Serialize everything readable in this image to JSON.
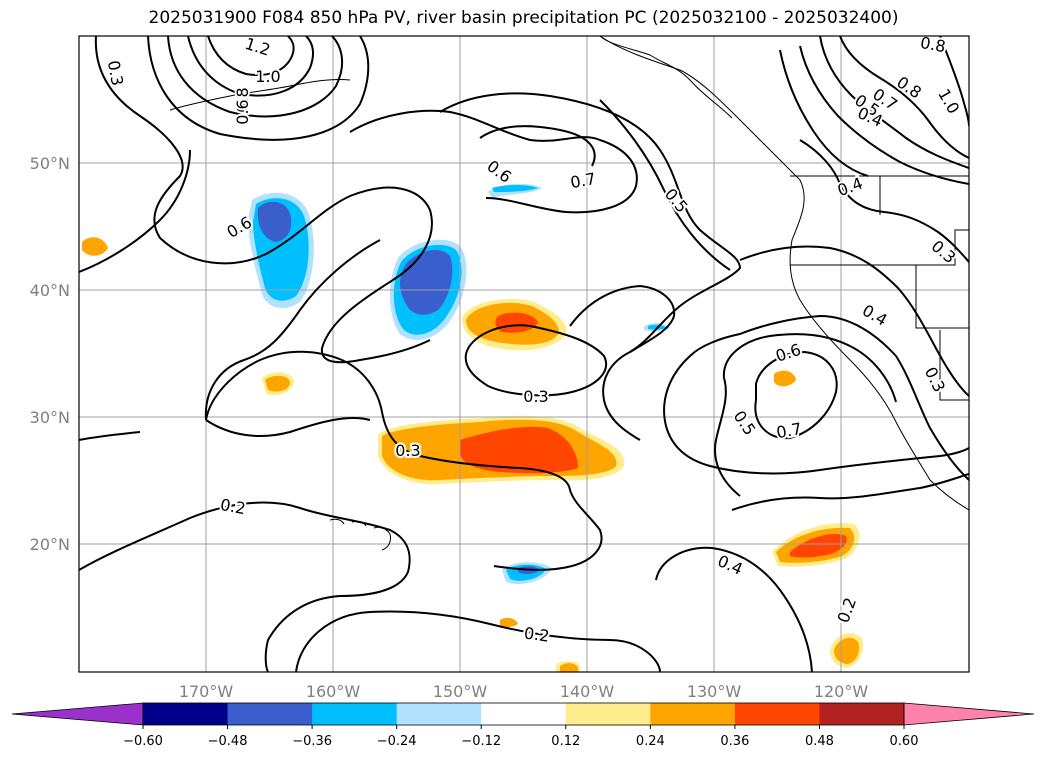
{
  "title": "2025031900 F084 850 hPa PV, river basin precipitation PC (2025032100 - 2025032400)",
  "longitude_labels": [
    "170°W",
    "160°W",
    "150°W",
    "140°W",
    "130°W",
    "120°W"
  ],
  "latitude_labels": [
    "50°N",
    "40°N",
    "30°N",
    "20°N"
  ],
  "contour_labels": [
    {
      "text": "1.2"
    },
    {
      "text": "1.0"
    },
    {
      "text": "0.8"
    },
    {
      "text": "0.6"
    },
    {
      "text": "0.3"
    },
    {
      "text": "0.6"
    },
    {
      "text": "0.7"
    },
    {
      "text": "0.5"
    },
    {
      "text": "0.6"
    },
    {
      "text": "0.3"
    },
    {
      "text": "0.3"
    },
    {
      "text": "0.2"
    },
    {
      "text": "0.2"
    },
    {
      "text": "0.4"
    },
    {
      "text": "0.5"
    },
    {
      "text": "0.7"
    },
    {
      "text": "0.6"
    },
    {
      "text": "0.4"
    },
    {
      "text": "0.3"
    },
    {
      "text": "0.4"
    },
    {
      "text": "0.3"
    },
    {
      "text": "0.2"
    },
    {
      "text": "0.8"
    },
    {
      "text": "0.8"
    },
    {
      "text": "0.7"
    },
    {
      "text": "0.5"
    },
    {
      "text": "0.4"
    },
    {
      "text": "1.0"
    }
  ],
  "colorbar": {
    "tick_labels": [
      "−0.60",
      "−0.48",
      "−0.36",
      "−0.24",
      "−0.12",
      "0.12",
      "0.24",
      "0.36",
      "0.48",
      "0.60"
    ],
    "colors": [
      "#9932cc",
      "#00008b",
      "#3a5fcd",
      "#00bfff",
      "#b0e2ff",
      "#ffffff",
      "#ffec8b",
      "#ffa500",
      "#ff4500",
      "#b22222",
      "#ff82ab"
    ]
  },
  "colors": {
    "neg_dark": "#3a5fcd",
    "neg_mid": "#00bfff",
    "neg_light": "#b0e2ff",
    "pos_light": "#ffec8b",
    "pos_mid": "#ffa500",
    "pos_dark": "#ff4500",
    "grid": "#a0a0a0",
    "contour": "#000000"
  }
}
